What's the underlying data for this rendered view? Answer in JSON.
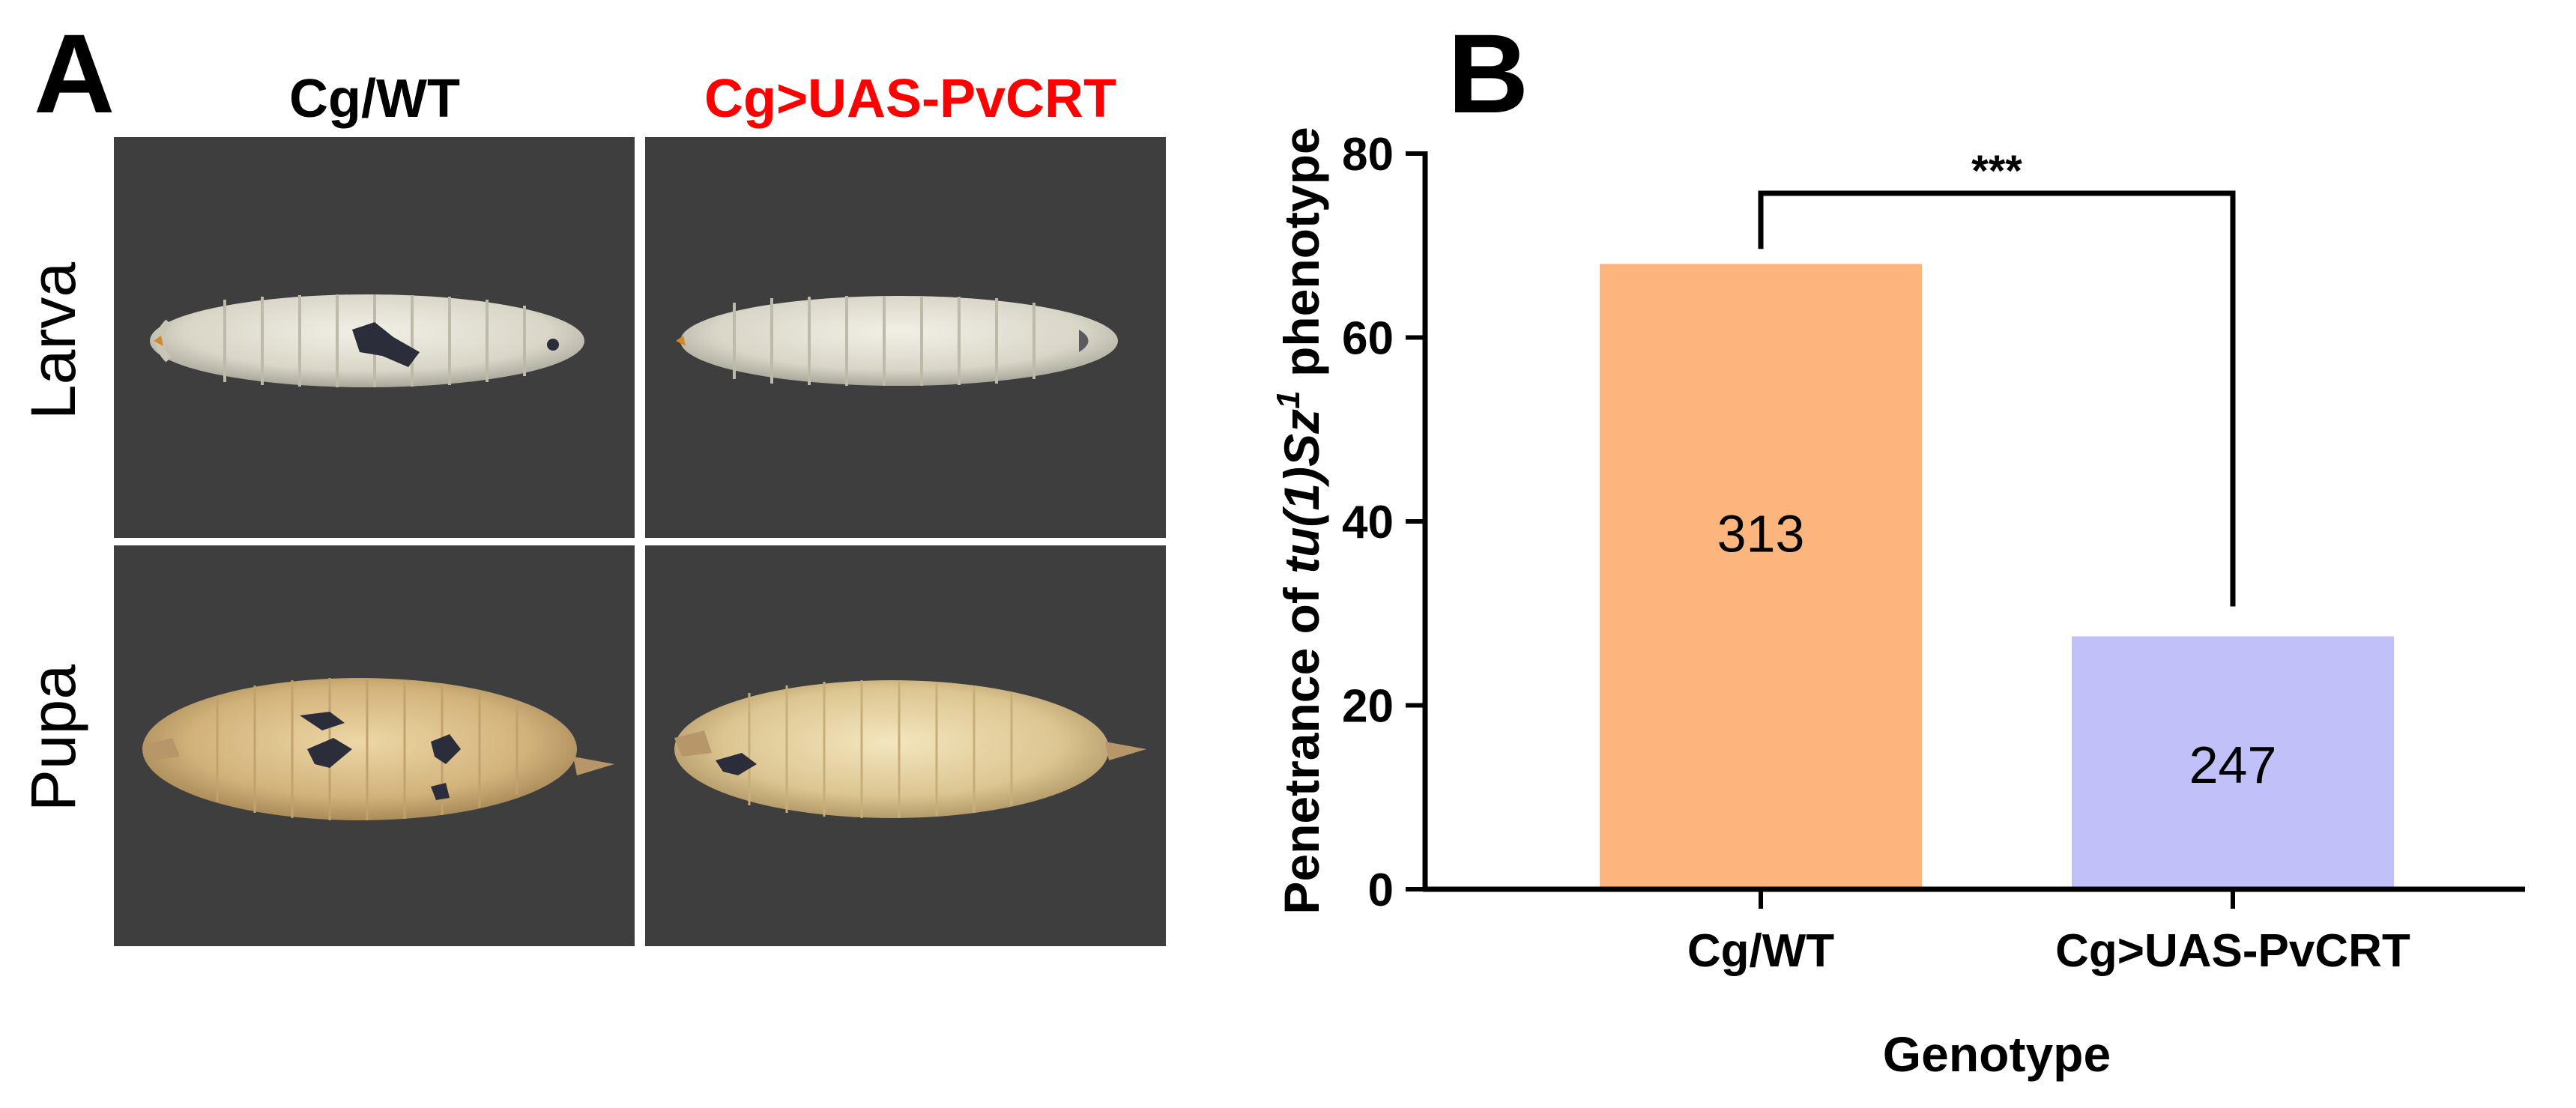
{
  "panel_a": {
    "letter": "A",
    "columns": [
      {
        "label": "Cg/WT",
        "color": "#000000"
      },
      {
        "label": "Cg>UAS-PvCRT",
        "color": "#ff0000"
      }
    ],
    "rows": [
      "Larva",
      "Pupa"
    ]
  },
  "panel_b": {
    "letter": "B"
  },
  "chart_data": {
    "type": "bar",
    "categories": [
      "Cg/WT",
      "Cg>UAS-PvCRT"
    ],
    "values": [
      68,
      27.5
    ],
    "bar_labels": [
      "313",
      "247"
    ],
    "colors": [
      "#fbb57d",
      "#c1c1f9"
    ],
    "ylim": [
      0,
      80
    ],
    "yticks": [
      0,
      20,
      40,
      60,
      80
    ],
    "xlabel": "Genotype",
    "ylabel": {
      "prefix": "Penetrance of ",
      "italic": "tu(1)Sz",
      "superscript": "1",
      "suffix": " phenotype"
    },
    "significance": "***",
    "grid": false
  }
}
